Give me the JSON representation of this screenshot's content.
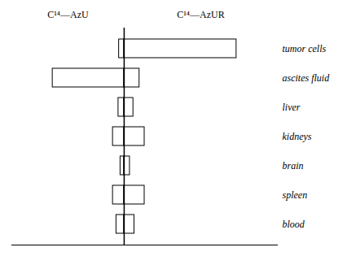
{
  "chart_data": {
    "type": "bar",
    "orientation": "horizontal",
    "categories": [
      "tumor cells",
      "ascites fluid",
      "liver",
      "kidneys",
      "brain",
      "spleen",
      "blood"
    ],
    "series": [
      {
        "name": "C¹⁴—AzU",
        "color": "white",
        "side": "left",
        "values": [
          0.25,
          3.5,
          0.28,
          0.55,
          0.18,
          0.55,
          0.38
        ]
      },
      {
        "name": "C¹⁴—AzUR",
        "color": "white",
        "side": "right",
        "values": [
          5.5,
          0.75,
          0.45,
          1.0,
          0.28,
          1.0,
          0.5
        ]
      }
    ],
    "xlim": [
      -5.5,
      7.5
    ],
    "tick_labels": "y",
    "grid": false
  }
}
